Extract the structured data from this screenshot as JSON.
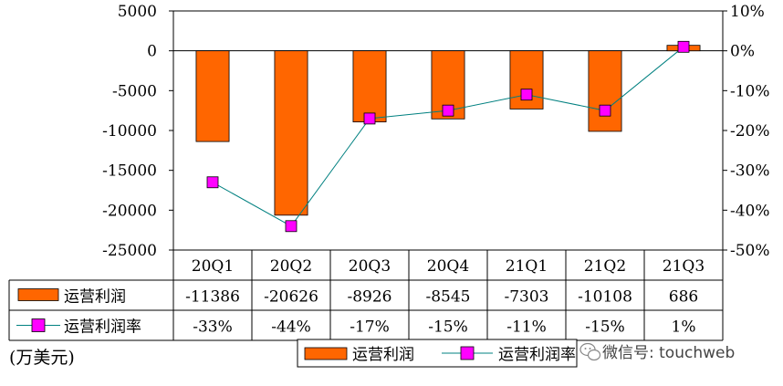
{
  "chart_data": {
    "type": "bar",
    "categories": [
      "20Q1",
      "20Q2",
      "20Q3",
      "20Q4",
      "21Q1",
      "21Q2",
      "21Q3"
    ],
    "series": [
      {
        "name": "运营利润",
        "type": "bar",
        "axis": "left",
        "values": [
          -11386,
          -20626,
          -8926,
          -8545,
          -7303,
          -10108,
          686
        ],
        "labels": [
          "-11386",
          "-20626",
          "-8926",
          "-8545",
          "-7303",
          "-10108",
          "686"
        ],
        "color": "#ff6600"
      },
      {
        "name": "运营利润率",
        "type": "line",
        "axis": "right",
        "values": [
          -33,
          -44,
          -17,
          -15,
          -11,
          -15,
          1
        ],
        "labels": [
          "-33%",
          "-44%",
          "-17%",
          "-15%",
          "-11%",
          "-15%",
          "1%"
        ],
        "color": "#ff00ff",
        "line_color": "#008080"
      }
    ],
    "y_left": {
      "lim": [
        -25000,
        5000
      ],
      "ticks": [
        5000,
        0,
        -5000,
        -10000,
        -15000,
        -20000,
        -25000
      ],
      "tick_labels": [
        "5000",
        "0",
        "-5000",
        "-10000",
        "-15000",
        "-20000",
        "-25000"
      ]
    },
    "y_right": {
      "lim": [
        -50,
        10
      ],
      "ticks": [
        10,
        0,
        -10,
        -20,
        -30,
        -40,
        -50
      ],
      "tick_labels": [
        "10%",
        "0%",
        "-10%",
        "-20%",
        "-30%",
        "-40%",
        "-50%"
      ]
    },
    "unit_label": "(万美元)",
    "legend_position": "bottom-center",
    "data_table": true,
    "grid": false
  },
  "watermark": {
    "text": "微信号: touchweb",
    "icon": "wechat-icon"
  }
}
